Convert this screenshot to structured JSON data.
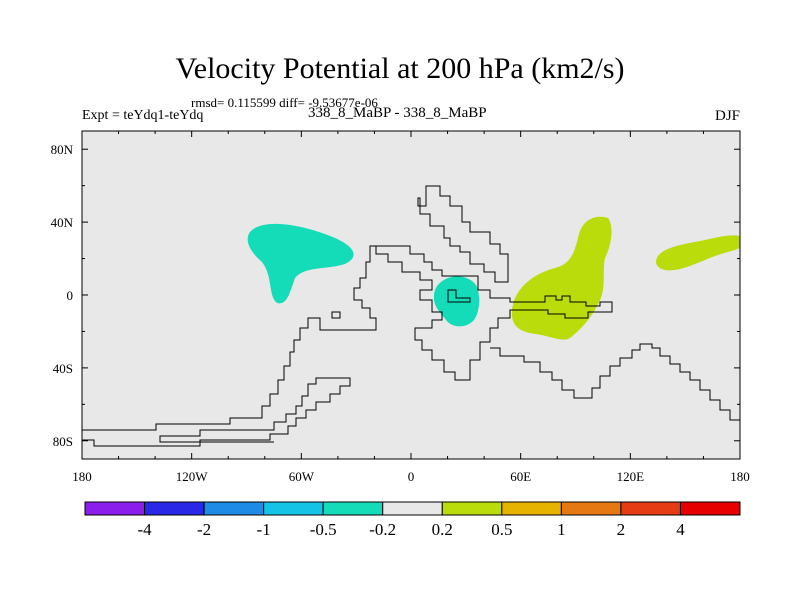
{
  "chart_data": {
    "type": "heatmap",
    "title": "Velocity Potential at 200 hPa (km2/s)",
    "stats": "rmsd= 0.115599 diff= -9.53677e-06",
    "left_label": "Expt = teYdq1-teYdq",
    "center_label": "338_8_MaBP - 338_8_MaBP",
    "right_label": "DJF",
    "x_ticks": [
      "180",
      "120W",
      "60W",
      "0",
      "60E",
      "120E",
      "180"
    ],
    "x_tick_values": [
      -180,
      -120,
      -60,
      0,
      60,
      120,
      180
    ],
    "y_ticks": [
      "80N",
      "40N",
      "0",
      "40S",
      "80S"
    ],
    "y_tick_values": [
      80,
      40,
      0,
      -40,
      -80
    ],
    "xlim": [
      -180,
      180
    ],
    "ylim": [
      -90,
      90
    ],
    "colorbar": {
      "labels": [
        "-4",
        "-2",
        "-1",
        "-0.5",
        "-0.2",
        "0.2",
        "0.5",
        "1",
        "2",
        "4"
      ],
      "colors": [
        "#8c1eeb",
        "#2828e6",
        "#1e8ce6",
        "#14c3e6",
        "#14dcb9",
        "#e8e8e8",
        "#b9dc0a",
        "#e6b400",
        "#e67814",
        "#e63c14",
        "#e60000"
      ]
    },
    "regions": [
      {
        "name": "negative anomaly over North Pacific / western North America",
        "range": "-0.5 to -0.2",
        "color": "#14dcb9"
      },
      {
        "name": "negative anomaly over West Africa",
        "range": "-0.5 to -0.2",
        "color": "#14dcb9"
      },
      {
        "name": "positive anomaly over Arabian Sea / Indian Ocean",
        "range": "0.2 to 0.5",
        "color": "#b9dc0a"
      },
      {
        "name": "positive anomaly over subtropical North Pacific",
        "range": "0.2 to 0.5",
        "color": "#b9dc0a"
      }
    ]
  }
}
